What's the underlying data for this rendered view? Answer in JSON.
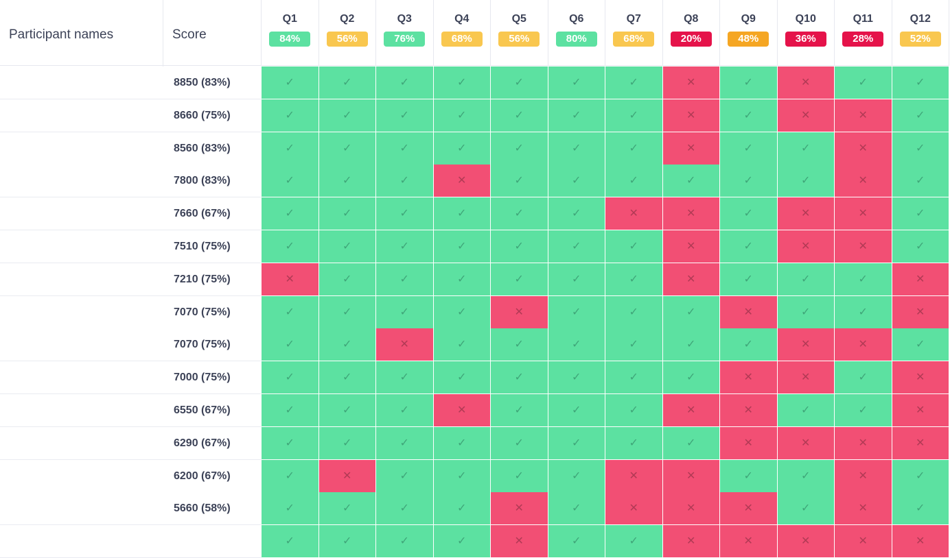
{
  "headers": {
    "participants": "Participant names",
    "score": "Score"
  },
  "questions": [
    {
      "label": "Q1",
      "pct": "84%",
      "color": "#5ce1a1"
    },
    {
      "label": "Q2",
      "pct": "56%",
      "color": "#f9c74f"
    },
    {
      "label": "Q3",
      "pct": "76%",
      "color": "#5ce1a1"
    },
    {
      "label": "Q4",
      "pct": "68%",
      "color": "#f9c74f"
    },
    {
      "label": "Q5",
      "pct": "56%",
      "color": "#f9c74f"
    },
    {
      "label": "Q6",
      "pct": "80%",
      "color": "#5ce1a1"
    },
    {
      "label": "Q7",
      "pct": "68%",
      "color": "#f9c74f"
    },
    {
      "label": "Q8",
      "pct": "20%",
      "color": "#e5134a"
    },
    {
      "label": "Q9",
      "pct": "48%",
      "color": "#f5a623"
    },
    {
      "label": "Q10",
      "pct": "36%",
      "color": "#e5134a"
    },
    {
      "label": "Q11",
      "pct": "28%",
      "color": "#e5134a"
    },
    {
      "label": "Q12",
      "pct": "52%",
      "color": "#f9c74f"
    }
  ],
  "rows": [
    {
      "score": "8850 (83%)",
      "results": "YYYYYYYNYNYY"
    },
    {
      "score": "8660 (75%)",
      "results": "YYYYYYYNYNNY"
    },
    {
      "score": "8560 (83%)",
      "results": "YYYYYYYNYYNY"
    },
    {
      "score": "7800 (83%)",
      "results": "YYYNYYYYYYNY"
    },
    {
      "score": "7660 (67%)",
      "results": "YYYYYYNNYNNY"
    },
    {
      "score": "7510 (75%)",
      "results": "YYYYYYYNYNNY"
    },
    {
      "score": "7210 (75%)",
      "results": "NYYYYYYNYYYN"
    },
    {
      "score": "7070 (75%)",
      "results": "YYYYNYYYNYYN"
    },
    {
      "score": "7070 (75%)",
      "results": "YYNYYYYYYNNY"
    },
    {
      "score": "7000 (75%)",
      "results": "YYYYYYYYNNYN"
    },
    {
      "score": "6550 (67%)",
      "results": "YYYNYYYNNYYN"
    },
    {
      "score": "6290 (67%)",
      "results": "YYYYYYYYNNNN"
    },
    {
      "score": "6200 (67%)",
      "results": "YNYYYYNNYYNY"
    },
    {
      "score": "5660 (58%)",
      "results": "YYYYNYNNNYNY"
    },
    {
      "score": "",
      "results": "YYYYNYYNNNNN"
    }
  ],
  "icons": {
    "correct": "check-icon",
    "incorrect": "cross-icon"
  },
  "colors": {
    "correct": "#5ce1a1",
    "incorrect": "#f24f74"
  }
}
